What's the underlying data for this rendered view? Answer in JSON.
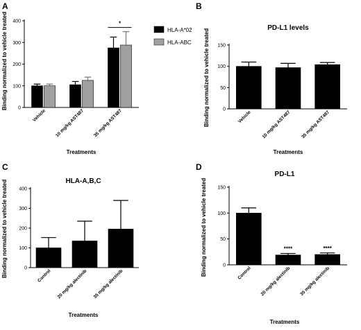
{
  "chart_data": [
    {
      "panel": "A",
      "type": "bar",
      "title": "",
      "ylabel": "Binding normalized to vehicle treated",
      "xlabel": "Treatments",
      "ylim": [
        0,
        400
      ],
      "yticks": [
        0,
        100,
        200,
        300,
        400
      ],
      "categories": [
        "Vehicle",
        "10 mg/kg AST487",
        "35 mg/kg AST487"
      ],
      "series": [
        {
          "name": "HLA-A*02",
          "color": "#000000",
          "values": [
            100,
            105,
            275
          ],
          "errors": [
            8,
            15,
            50
          ]
        },
        {
          "name": "HLA-ABC",
          "color": "#a0a0a0",
          "values": [
            100,
            125,
            288
          ],
          "errors": [
            8,
            15,
            62
          ]
        }
      ],
      "annotations": [
        {
          "text": "*",
          "category": 2
        }
      ],
      "legend": "right"
    },
    {
      "panel": "B",
      "type": "bar",
      "title": "PD-L1 levels",
      "ylabel": "Binding normalized to vehicle treated",
      "xlabel": "Treatments",
      "ylim": [
        0,
        150
      ],
      "yticks": [
        0,
        50,
        100,
        150
      ],
      "categories": [
        "Vehicle",
        "10 mg/kg AST487",
        "35 mg/kg AST487"
      ],
      "series": [
        {
          "color": "#000000",
          "values": [
            100,
            97,
            104
          ],
          "errors": [
            10,
            10,
            5
          ]
        }
      ]
    },
    {
      "panel": "C",
      "type": "bar",
      "title": "HLA-A,B,C",
      "ylabel": "Binding normalized to vehicle treated",
      "xlabel": "Treatments",
      "ylim": [
        0,
        400
      ],
      "yticks": [
        0,
        100,
        200,
        300,
        400
      ],
      "categories": [
        "Control",
        "20 mg/kg alectinib",
        "35 mg/kg alectinib"
      ],
      "series": [
        {
          "color": "#000000",
          "values": [
            100,
            135,
            195
          ],
          "errors": [
            52,
            100,
            145
          ]
        }
      ]
    },
    {
      "panel": "D",
      "type": "bar",
      "title": "PD-L1",
      "ylabel": "Binding normalized to vehicle treated",
      "xlabel": "Treatments",
      "ylim": [
        0,
        150
      ],
      "yticks": [
        0,
        50,
        100,
        150
      ],
      "categories": [
        "Control",
        "20 mg/kg alectinib",
        "35 mg/kg alectinib"
      ],
      "series": [
        {
          "color": "#000000",
          "values": [
            100,
            19,
            20
          ],
          "errors": [
            10,
            3,
            3
          ]
        }
      ],
      "annotations": [
        {
          "text": "****",
          "category": 1
        },
        {
          "text": "****",
          "category": 2
        }
      ]
    }
  ]
}
